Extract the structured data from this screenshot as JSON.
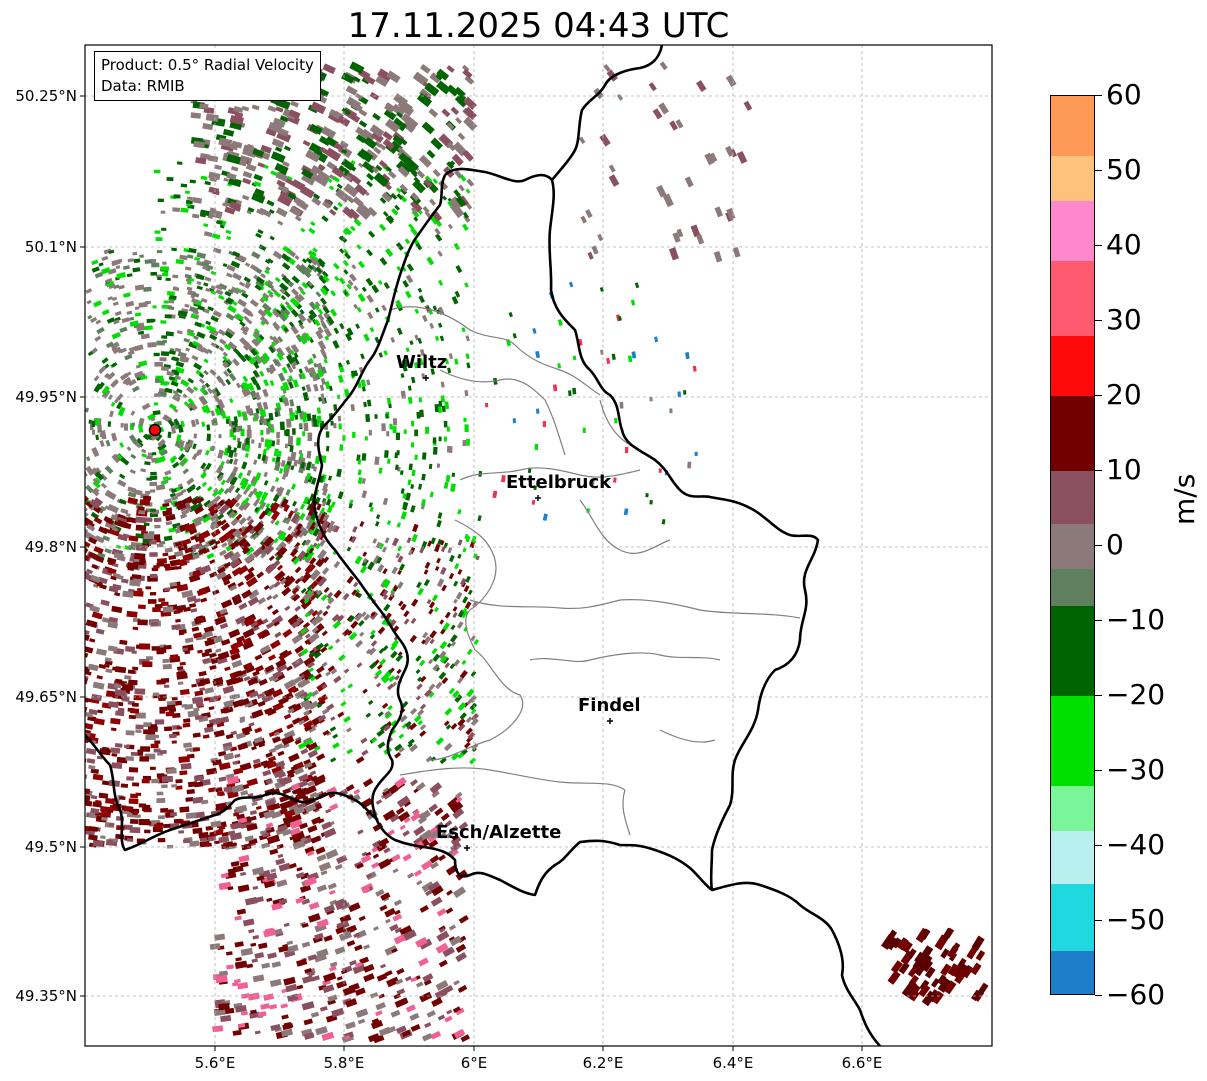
{
  "title": "17.11.2025 04:43 UTC",
  "infobox": {
    "product": "Product: 0.5° Radial Velocity",
    "data": "Data: RMIB"
  },
  "lat_ticks": [
    "50.25°N",
    "50.1°N",
    "49.95°N",
    "49.8°N",
    "49.65°N",
    "49.5°N",
    "49.35°N"
  ],
  "lon_ticks": [
    "5.6°E",
    "5.8°E",
    "6°E",
    "6.2°E",
    "6.4°E",
    "6.6°E"
  ],
  "cities": [
    {
      "name": "Wiltz"
    },
    {
      "name": "Ettelbruck"
    },
    {
      "name": "Findel"
    },
    {
      "name": "Esch/Alzette"
    }
  ],
  "colorbar": {
    "label": "m/s",
    "ticks": [
      "60",
      "50",
      "40",
      "30",
      "20",
      "10",
      "0",
      "−10",
      "−20",
      "−30",
      "−40",
      "−50",
      "−60"
    ],
    "range": [
      -60,
      60
    ],
    "colors": {
      "high": "#ff9955",
      "peach": "#ffc27a",
      "pink": "#ff88cc",
      "red": "#ff0a0a",
      "dark_red": "#720000",
      "mauve": "#8a5060",
      "gray": "#8c7a7a",
      "dull_green": "#5f7f5f",
      "dark_green": "#006400",
      "green": "#00e000",
      "light_green": "#7af59a",
      "light_cyan": "#b8f0f0",
      "cyan": "#20d8e0",
      "blue": "#1e7fc8"
    }
  }
}
